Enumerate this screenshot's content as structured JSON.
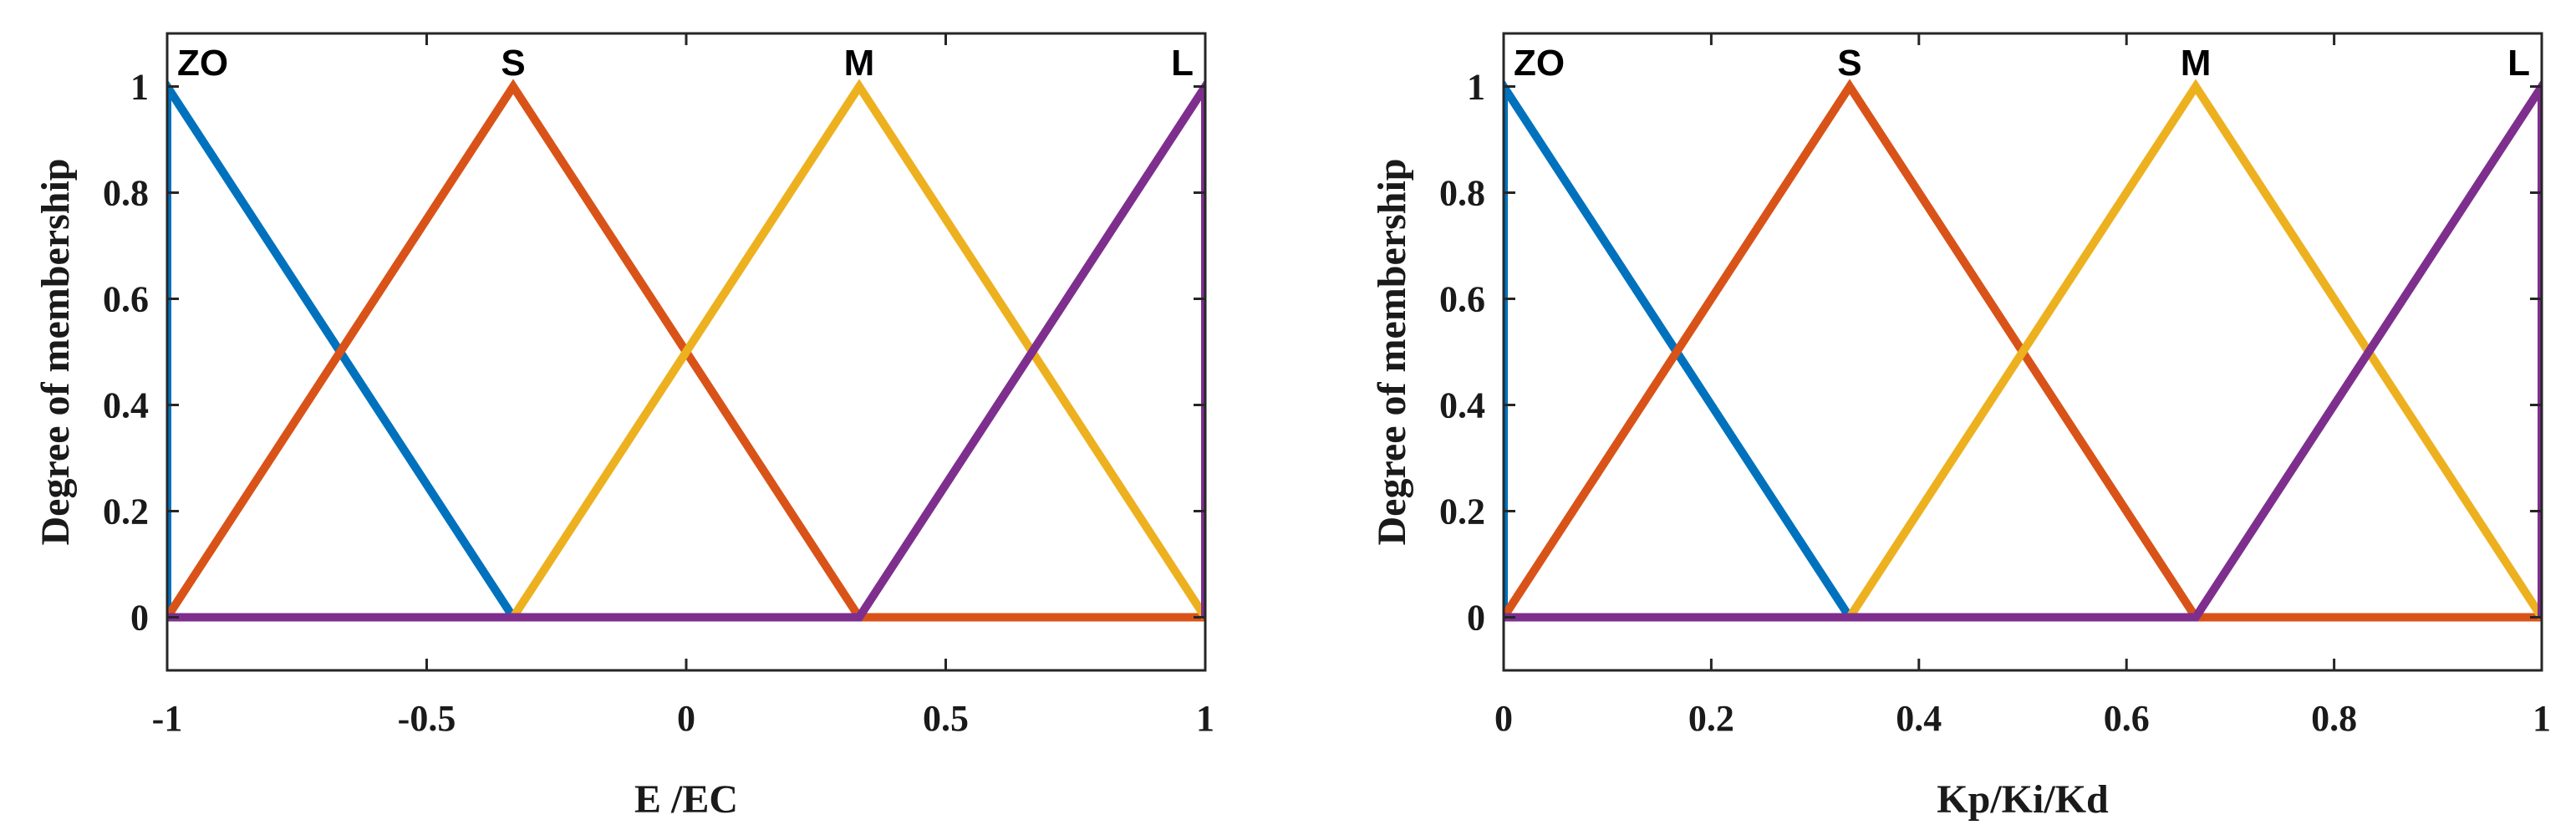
{
  "chart_data": [
    {
      "type": "line",
      "title": "",
      "xlabel": "E /EC",
      "ylabel": "Degree of membership",
      "xlim": [
        -1,
        1
      ],
      "ylim": [
        -0.1,
        1.1
      ],
      "xticks": [
        "-1",
        "-0.5",
        "0",
        "0.5",
        "1"
      ],
      "yticks": [
        "0",
        "0.2",
        "0.4",
        "0.6",
        "0.8",
        "1"
      ],
      "grid": false,
      "legend": "none",
      "mf_labels": [
        {
          "text": "ZO",
          "x": -1
        },
        {
          "text": "S",
          "x": -0.3333
        },
        {
          "text": "M",
          "x": 0.3333
        },
        {
          "text": "L",
          "x": 1
        }
      ],
      "series": [
        {
          "color": "#0072BD",
          "x": [
            -1,
            -1,
            -0.3333,
            1
          ],
          "y": [
            0,
            1,
            0,
            0
          ]
        },
        {
          "color": "#D95319",
          "x": [
            -1,
            -0.3333,
            0.3333,
            1
          ],
          "y": [
            0,
            1,
            0,
            0
          ]
        },
        {
          "color": "#EDB120",
          "x": [
            -1,
            -0.3333,
            0.3333,
            1
          ],
          "y": [
            0,
            0,
            1,
            0
          ]
        },
        {
          "color": "#7E2F8E",
          "x": [
            -1,
            0.3333,
            1,
            1
          ],
          "y": [
            0,
            0,
            1,
            0
          ]
        }
      ]
    },
    {
      "type": "line",
      "title": "",
      "xlabel": "Kp/Ki/Kd",
      "ylabel": "Degree of membership",
      "xlim": [
        0,
        1
      ],
      "ylim": [
        -0.1,
        1.1
      ],
      "xticks": [
        "0",
        "0.2",
        "0.4",
        "0.6",
        "0.8",
        "1"
      ],
      "yticks": [
        "0",
        "0.2",
        "0.4",
        "0.6",
        "0.8",
        "1"
      ],
      "grid": false,
      "legend": "none",
      "mf_labels": [
        {
          "text": "ZO",
          "x": 0
        },
        {
          "text": "S",
          "x": 0.3333
        },
        {
          "text": "M",
          "x": 0.6667
        },
        {
          "text": "L",
          "x": 1
        }
      ],
      "series": [
        {
          "color": "#0072BD",
          "x": [
            0,
            0,
            0.3333,
            1
          ],
          "y": [
            0,
            1,
            0,
            0
          ]
        },
        {
          "color": "#D95319",
          "x": [
            0,
            0.3333,
            0.6667,
            1
          ],
          "y": [
            0,
            1,
            0,
            0
          ]
        },
        {
          "color": "#EDB120",
          "x": [
            0,
            0.3333,
            0.6667,
            1
          ],
          "y": [
            0,
            0,
            1,
            0
          ]
        },
        {
          "color": "#7E2F8E",
          "x": [
            0,
            0.6667,
            1,
            1
          ],
          "y": [
            0,
            0,
            1,
            0
          ]
        }
      ]
    }
  ]
}
